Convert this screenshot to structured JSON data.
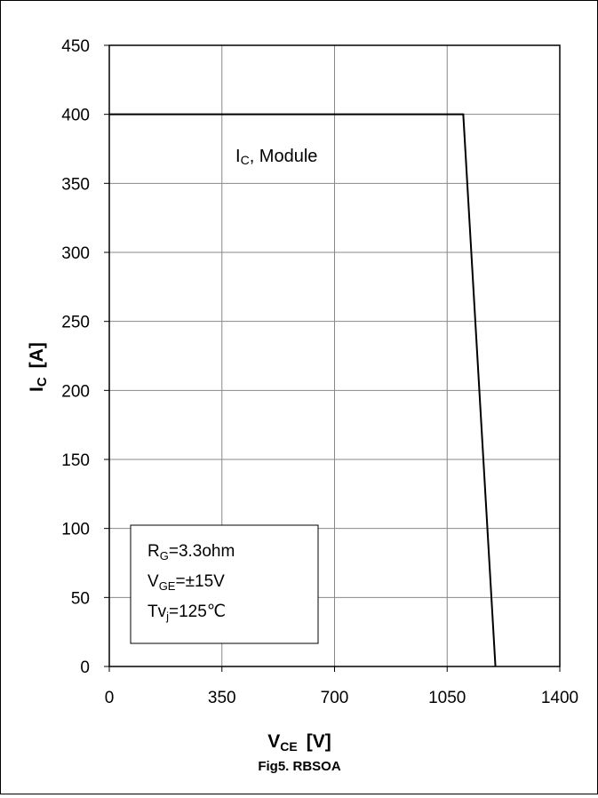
{
  "chart_data": {
    "type": "line",
    "title": "",
    "caption": "Fig5. RBSOA",
    "xlabel": {
      "main": "V",
      "sub": "CE",
      "unit": "[V]"
    },
    "ylabel": {
      "main": "I",
      "sub": "C",
      "unit": "[A]"
    },
    "xlim": [
      0,
      1400
    ],
    "ylim": [
      0,
      450
    ],
    "x_ticks": [
      0,
      350,
      700,
      1050,
      1400
    ],
    "y_ticks": [
      0,
      50,
      100,
      150,
      200,
      250,
      300,
      350,
      400,
      450
    ],
    "grid": true,
    "series": [
      {
        "name": "IC, Module",
        "x": [
          0,
          1100,
          1200
        ],
        "y": [
          400,
          400,
          0
        ]
      }
    ],
    "series_label": {
      "main": "I",
      "sub": "C",
      "rest": ", Module"
    },
    "conditions": [
      {
        "main": "R",
        "sub": "G",
        "rest": "=3.3ohm"
      },
      {
        "main": "V",
        "sub": "GE",
        "rest": "=±15V"
      },
      {
        "main": "Tv",
        "sub": "j",
        "rest": "=125℃"
      }
    ]
  }
}
